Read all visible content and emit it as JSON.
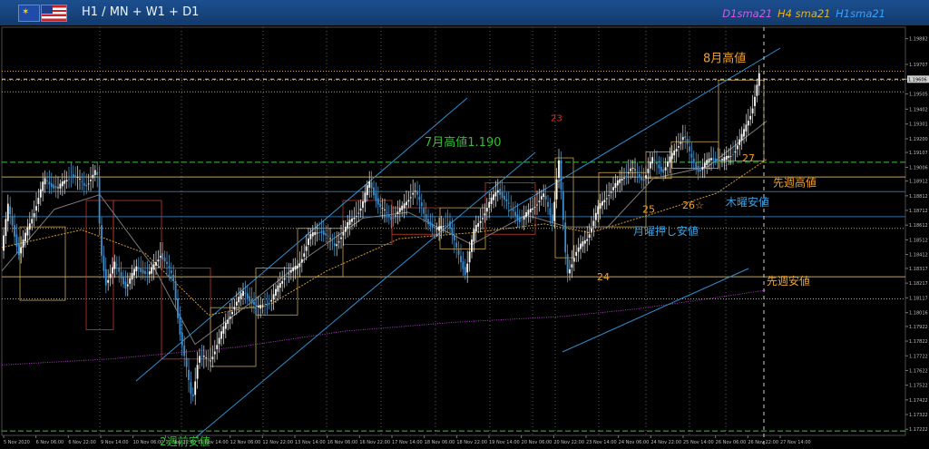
{
  "header": {
    "symbol": "H1 / MN + W1 + D1",
    "flags": [
      "eu-flag",
      "us-flag"
    ],
    "ma_legend": [
      {
        "label": "D1sma21",
        "color": "#d957e6"
      },
      {
        "label": "H4 sma21",
        "color": "#e6b020"
      },
      {
        "label": "H1sma21",
        "color": "#3aa0ff"
      }
    ]
  },
  "chart_data": {
    "type": "candlestick",
    "instrument": "EURUSD",
    "timeframe": "H1",
    "x_ticks": [
      "5 Nov 2020",
      "6 Nov 06:00",
      "6 Nov 22:00",
      "9 Nov 14:00",
      "10 Nov 06:00",
      "10 Nov 22:00",
      "11 Nov 14:00",
      "12 Nov 06:00",
      "12 Nov 22:00",
      "13 Nov 14:00",
      "16 Nov 06:00",
      "16 Nov 22:00",
      "17 Nov 14:00",
      "18 Nov 06:00",
      "18 Nov 22:00",
      "19 Nov 14:00",
      "20 Nov 06:00",
      "20 Nov 22:00",
      "23 Nov 14:00",
      "24 Nov 06:00",
      "24 Nov 22:00",
      "25 Nov 14:00",
      "26 Nov 06:00",
      "26 Nov 22:00",
      "27 Nov 14:00"
    ],
    "y_ticks": [
      "1.19882",
      "1.19707",
      "1.19606",
      "1.19505",
      "1.19402",
      "1.19301",
      "1.19200",
      "1.19107",
      "1.19006",
      "1.18912",
      "1.18812",
      "1.18712",
      "1.18612",
      "1.18512",
      "1.18412",
      "1.18317",
      "1.18217",
      "1.18117",
      "1.18016",
      "1.17922",
      "1.17822",
      "1.17722",
      "1.17622",
      "1.17522",
      "1.17422",
      "1.17322",
      "1.17222"
    ],
    "ylim": [
      1.1718,
      1.1996
    ],
    "current_price": 1.19606,
    "moving_averages": [
      "D1sma21",
      "H4 sma21",
      "H1sma21"
    ],
    "annotations": [
      {
        "text": "8月高値",
        "color": "#f0a030",
        "price": 1.1966
      },
      {
        "text": "7月高値1.190",
        "color": "#30c030",
        "price": 1.191
      },
      {
        "text": "先週高値",
        "color": "#f0a030",
        "price": 1.189
      },
      {
        "text": "木曜安値",
        "color": "#3aa0e0",
        "price": 1.1878
      },
      {
        "text": "月曜押し安値",
        "color": "#3aa0e0",
        "price": 1.1857
      },
      {
        "text": "先週安値",
        "color": "#f0a030",
        "price": 1.1823
      },
      {
        "text": "2週前安値",
        "color": "#30c030",
        "price": 1.172
      },
      {
        "text": "23",
        "color": "#e03030",
        "price": 1.1926
      },
      {
        "text": "24",
        "color": "#f0a030",
        "price": 1.1831
      },
      {
        "text": "25",
        "color": "#f0a030",
        "price": 1.1877
      },
      {
        "text": "26☆",
        "color": "#f0a030",
        "price": 1.188
      },
      {
        "text": "27",
        "color": "#f0a030",
        "price": 1.1912
      }
    ],
    "levels": [
      {
        "price": 1.1966,
        "color": "#d4a04a",
        "style": "dotted"
      },
      {
        "price": 1.196,
        "color": "#d4a04a",
        "style": "dotted"
      },
      {
        "price": 1.1952,
        "color": "#d4a04a",
        "style": "dotted"
      },
      {
        "price": 1.1904,
        "color": "#3fbf3f",
        "style": "dashed"
      },
      {
        "price": 1.1894,
        "color": "#c9a24a",
        "style": "solid"
      },
      {
        "price": 1.1884,
        "color": "#2d6fa8",
        "style": "solid"
      },
      {
        "price": 1.1867,
        "color": "#2d6fa8",
        "style": "solid"
      },
      {
        "price": 1.1859,
        "color": "#c9a24a",
        "style": "dotted"
      },
      {
        "price": 1.1826,
        "color": "#c9a24a",
        "style": "solid"
      },
      {
        "price": 1.1811,
        "color": "#c9a24a",
        "style": "dotted"
      },
      {
        "price": 1.1721,
        "color": "#3fbf3f",
        "style": "dashed"
      }
    ],
    "path": [
      [
        0,
        1.1832
      ],
      [
        10,
        1.1874
      ],
      [
        22,
        1.1842
      ],
      [
        35,
        1.1864
      ],
      [
        50,
        1.1892
      ],
      [
        65,
        1.1886
      ],
      [
        80,
        1.1896
      ],
      [
        95,
        1.1888
      ],
      [
        108,
        1.1899
      ],
      [
        112,
        1.1845
      ],
      [
        118,
        1.1822
      ],
      [
        128,
        1.1835
      ],
      [
        140,
        1.1819
      ],
      [
        152,
        1.1833
      ],
      [
        165,
        1.1827
      ],
      [
        178,
        1.1842
      ],
      [
        192,
        1.1825
      ],
      [
        200,
        1.1786
      ],
      [
        207,
        1.1762
      ],
      [
        213,
        1.1741
      ],
      [
        220,
        1.1773
      ],
      [
        232,
        1.1768
      ],
      [
        245,
        1.1787
      ],
      [
        258,
        1.1805
      ],
      [
        270,
        1.1816
      ],
      [
        285,
        1.1804
      ],
      [
        300,
        1.181
      ],
      [
        315,
        1.1827
      ],
      [
        330,
        1.1833
      ],
      [
        342,
        1.1853
      ],
      [
        355,
        1.1858
      ],
      [
        370,
        1.1847
      ],
      [
        385,
        1.1862
      ],
      [
        400,
        1.1874
      ],
      [
        408,
        1.1891
      ],
      [
        420,
        1.1873
      ],
      [
        432,
        1.1866
      ],
      [
        445,
        1.1873
      ],
      [
        458,
        1.1886
      ],
      [
        470,
        1.1866
      ],
      [
        482,
        1.1857
      ],
      [
        495,
        1.1864
      ],
      [
        505,
        1.1843
      ],
      [
        514,
        1.1829
      ],
      [
        524,
        1.1858
      ],
      [
        538,
        1.1873
      ],
      [
        550,
        1.1886
      ],
      [
        562,
        1.1874
      ],
      [
        575,
        1.1864
      ],
      [
        588,
        1.1873
      ],
      [
        600,
        1.1882
      ],
      [
        610,
        1.1864
      ],
      [
        617,
        1.1907
      ],
      [
        621,
        1.1872
      ],
      [
        626,
        1.1827
      ],
      [
        635,
        1.1842
      ],
      [
        648,
        1.1852
      ],
      [
        660,
        1.1872
      ],
      [
        672,
        1.1883
      ],
      [
        685,
        1.1892
      ],
      [
        697,
        1.19
      ],
      [
        710,
        1.1892
      ],
      [
        720,
        1.1906
      ],
      [
        732,
        1.1898
      ],
      [
        745,
        1.1912
      ],
      [
        755,
        1.1923
      ],
      [
        762,
        1.1908
      ],
      [
        772,
        1.1898
      ],
      [
        785,
        1.1907
      ],
      [
        798,
        1.1905
      ],
      [
        810,
        1.1911
      ],
      [
        820,
        1.1923
      ],
      [
        830,
        1.194
      ],
      [
        838,
        1.1963
      ]
    ]
  }
}
